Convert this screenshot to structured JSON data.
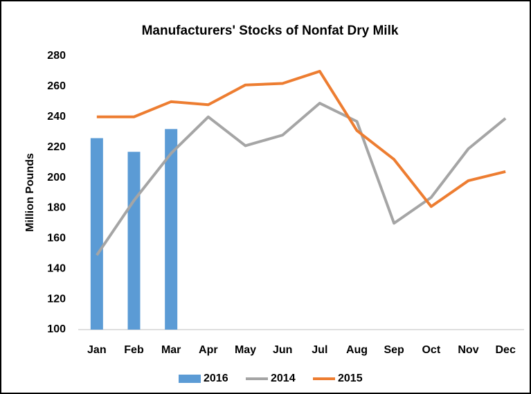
{
  "chart_data": {
    "type": "combo",
    "title": "Manufacturers' Stocks of Nonfat Dry Milk",
    "y_label": "Million Pounds",
    "categories": [
      "Jan",
      "Feb",
      "Mar",
      "Apr",
      "May",
      "Jun",
      "Jul",
      "Aug",
      "Sep",
      "Oct",
      "Nov",
      "Dec"
    ],
    "series": [
      {
        "name": "2016",
        "type": "bar",
        "color": "#5b9bd5",
        "values": [
          226,
          217,
          232,
          null,
          null,
          null,
          null,
          null,
          null,
          null,
          null,
          null
        ]
      },
      {
        "name": "2014",
        "type": "line",
        "color": "#a5a5a5",
        "values": [
          149,
          185,
          216,
          240,
          221,
          228,
          249,
          237,
          170,
          187,
          219,
          239
        ]
      },
      {
        "name": "2015",
        "type": "line",
        "color": "#ed7d31",
        "values": [
          240,
          240,
          250,
          248,
          261,
          262,
          270,
          231,
          212,
          181,
          198,
          204
        ]
      }
    ],
    "ylim": [
      100,
      280
    ],
    "yticks": [
      100,
      120,
      140,
      160,
      180,
      200,
      220,
      240,
      260,
      280
    ],
    "grid": false,
    "legend": "bottom"
  }
}
